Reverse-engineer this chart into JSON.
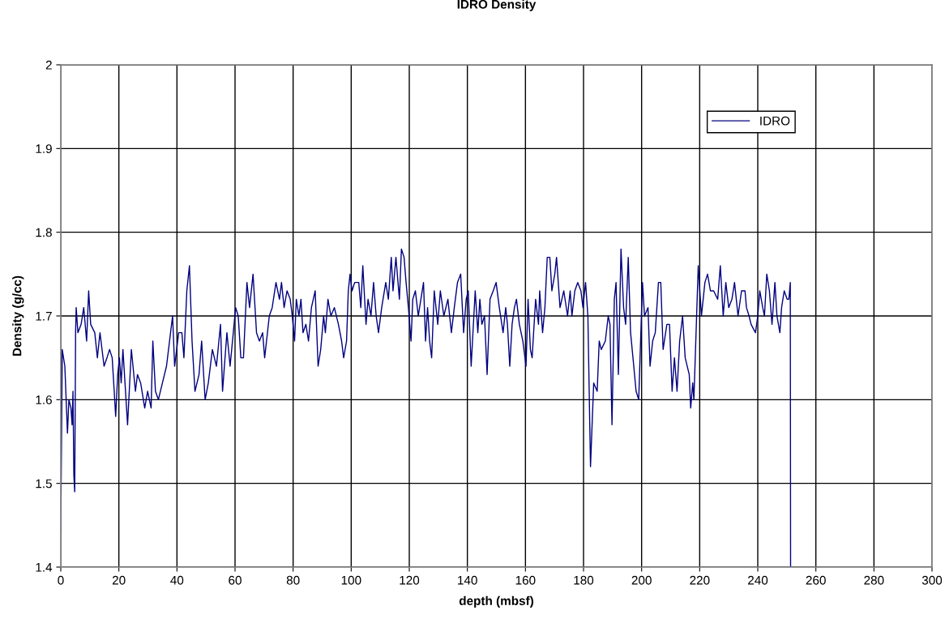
{
  "chart_data": {
    "type": "line",
    "title": "IDRO Density",
    "xlabel": "depth (mbsf)",
    "ylabel": "Density (g/cc)",
    "xlim": [
      0,
      300
    ],
    "xticks": [
      0,
      20,
      40,
      60,
      80,
      100,
      120,
      140,
      160,
      180,
      200,
      220,
      240,
      260,
      280,
      300
    ],
    "ylim": [
      1.4,
      2
    ],
    "yticks": [
      1.4,
      1.5,
      1.6,
      1.7,
      1.8,
      1.9,
      2
    ],
    "grid": true,
    "legend": "top right",
    "marker": "none",
    "line_style": "solid",
    "series": [
      {
        "name": "IDRO",
        "color": "#000080",
        "x": [
          0,
          0.5,
          1.4,
          2.3,
          2.8,
          3.5,
          3.9,
          4.2,
          4.5,
          4.8,
          5.1,
          5.3,
          5.9,
          7.0,
          7.9,
          8.9,
          9.6,
          10.3,
          11.7,
          12.6,
          13.5,
          14.9,
          15.9,
          16.8,
          17.7,
          18.4,
          18.9,
          19.6,
          20.2,
          20.8,
          21.4,
          23.0,
          24.3,
          25.7,
          26.4,
          27.5,
          28.9,
          29.9,
          31.1,
          31.7,
          32.6,
          33.6,
          35.0,
          36.4,
          37.8,
          38.5,
          39.2,
          40.6,
          41.7,
          42.4,
          43.4,
          44.3,
          45.2,
          46.2,
          47.6,
          48.5,
          49.7,
          50.8,
          52.2,
          53.6,
          55.0,
          55.7,
          57.2,
          58.3,
          59.4,
          60.2,
          61.1,
          62.0,
          62.9,
          64.1,
          65.0,
          66.2,
          67.4,
          68.4,
          69.5,
          70.2,
          71.8,
          72.8,
          74.1,
          75.3,
          76.0,
          76.9,
          77.9,
          79.0,
          79.7,
          80.5,
          81.1,
          82.0,
          82.7,
          83.4,
          84.4,
          85.3,
          86.3,
          87.6,
          88.6,
          89.5,
          90.5,
          91.1,
          92.0,
          93.0,
          94.2,
          95.6,
          96.7,
          97.4,
          98.4,
          99.0,
          99.6,
          100.3,
          101.2,
          102.6,
          103.3,
          104.0,
          105.1,
          105.8,
          106.8,
          107.7,
          108.6,
          109.4,
          110.5,
          111.9,
          112.8,
          113.8,
          114.4,
          115.4,
          116.6,
          117.3,
          118.2,
          118.9,
          119.7,
          120.6,
          121.2,
          122.1,
          123.1,
          124.0,
          124.9,
          125.6,
          126.3,
          127.0,
          127.7,
          128.6,
          129.8,
          130.7,
          131.9,
          133.3,
          134.5,
          135.5,
          136.6,
          137.7,
          138.7,
          139.6,
          140.3,
          141.3,
          142.7,
          143.6,
          144.3,
          145.0,
          145.9,
          146.8,
          147.8,
          148.9,
          149.9,
          151.0,
          152.3,
          153.2,
          153.8,
          154.6,
          155.4,
          156.2,
          156.9,
          157.9,
          159.1,
          160.2,
          160.9,
          161.7,
          162.3,
          163.5,
          164.5,
          164.9,
          165.9,
          166.7,
          167.5,
          168.4,
          169.1,
          170.1,
          170.7,
          171.9,
          173.2,
          174.5,
          175.4,
          176.0,
          177.0,
          178.0,
          179.1,
          179.8,
          180.7,
          181.5,
          182.4,
          183.5,
          184.7,
          185.4,
          186.1,
          187.5,
          188.5,
          189.1,
          189.8,
          190.6,
          191.2,
          192.0,
          192.9,
          193.8,
          194.5,
          195.4,
          196.2,
          197.3,
          198.1,
          199.0,
          200.3,
          201.0,
          202.2,
          202.9,
          203.8,
          204.7,
          205.8,
          206.6,
          207.4,
          208.7,
          209.6,
          210.5,
          211.3,
          212.2,
          213.1,
          214.1,
          215.0,
          216.4,
          216.9,
          217.6,
          218.0,
          219.5,
          220.6,
          221.8,
          222.7,
          223.7,
          224.8,
          226.2,
          227.1,
          228.1,
          229.0,
          230.0,
          231.1,
          232.0,
          233.2,
          234.4,
          235.6,
          236.1,
          237.0,
          237.7,
          239.2,
          240.0,
          240.7,
          241.7,
          242.3,
          243.1,
          244.0,
          244.9,
          245.9,
          246.6,
          247.6,
          248.2,
          249.1,
          250.1,
          250.7,
          251.2,
          251.3
        ],
        "values": [
          1.44,
          1.66,
          1.64,
          1.56,
          1.6,
          1.59,
          1.57,
          1.61,
          1.51,
          1.49,
          1.68,
          1.71,
          1.68,
          1.69,
          1.71,
          1.67,
          1.73,
          1.69,
          1.68,
          1.65,
          1.68,
          1.64,
          1.65,
          1.66,
          1.65,
          1.61,
          1.58,
          1.63,
          1.65,
          1.62,
          1.66,
          1.57,
          1.66,
          1.61,
          1.63,
          1.62,
          1.59,
          1.61,
          1.59,
          1.67,
          1.61,
          1.6,
          1.62,
          1.64,
          1.68,
          1.7,
          1.64,
          1.68,
          1.68,
          1.65,
          1.73,
          1.76,
          1.67,
          1.61,
          1.63,
          1.67,
          1.6,
          1.62,
          1.66,
          1.64,
          1.69,
          1.61,
          1.68,
          1.64,
          1.68,
          1.71,
          1.7,
          1.65,
          1.65,
          1.74,
          1.71,
          1.75,
          1.68,
          1.67,
          1.68,
          1.65,
          1.7,
          1.71,
          1.74,
          1.72,
          1.74,
          1.71,
          1.73,
          1.72,
          1.7,
          1.67,
          1.72,
          1.7,
          1.72,
          1.68,
          1.69,
          1.67,
          1.71,
          1.73,
          1.64,
          1.66,
          1.7,
          1.68,
          1.72,
          1.7,
          1.71,
          1.69,
          1.67,
          1.65,
          1.67,
          1.73,
          1.75,
          1.73,
          1.74,
          1.74,
          1.71,
          1.76,
          1.69,
          1.72,
          1.7,
          1.74,
          1.7,
          1.68,
          1.71,
          1.74,
          1.72,
          1.77,
          1.73,
          1.77,
          1.72,
          1.78,
          1.77,
          1.74,
          1.71,
          1.67,
          1.72,
          1.73,
          1.7,
          1.72,
          1.74,
          1.67,
          1.71,
          1.67,
          1.65,
          1.73,
          1.69,
          1.73,
          1.7,
          1.72,
          1.68,
          1.71,
          1.74,
          1.75,
          1.68,
          1.72,
          1.73,
          1.64,
          1.73,
          1.68,
          1.72,
          1.69,
          1.7,
          1.63,
          1.72,
          1.73,
          1.74,
          1.71,
          1.68,
          1.71,
          1.69,
          1.64,
          1.69,
          1.71,
          1.72,
          1.69,
          1.67,
          1.64,
          1.72,
          1.66,
          1.65,
          1.72,
          1.69,
          1.73,
          1.68,
          1.71,
          1.77,
          1.77,
          1.73,
          1.75,
          1.77,
          1.71,
          1.73,
          1.7,
          1.73,
          1.7,
          1.73,
          1.74,
          1.73,
          1.71,
          1.74,
          1.7,
          1.52,
          1.62,
          1.61,
          1.67,
          1.66,
          1.67,
          1.7,
          1.69,
          1.57,
          1.72,
          1.74,
          1.63,
          1.78,
          1.71,
          1.69,
          1.77,
          1.68,
          1.64,
          1.61,
          1.6,
          1.74,
          1.7,
          1.71,
          1.64,
          1.67,
          1.68,
          1.74,
          1.74,
          1.66,
          1.69,
          1.69,
          1.61,
          1.65,
          1.61,
          1.67,
          1.7,
          1.65,
          1.63,
          1.59,
          1.62,
          1.6,
          1.76,
          1.7,
          1.74,
          1.75,
          1.73,
          1.73,
          1.72,
          1.76,
          1.7,
          1.74,
          1.71,
          1.72,
          1.74,
          1.7,
          1.73,
          1.73,
          1.71,
          1.7,
          1.69,
          1.68,
          1.7,
          1.73,
          1.71,
          1.7,
          1.75,
          1.73,
          1.69,
          1.74,
          1.7,
          1.68,
          1.71,
          1.73,
          1.72,
          1.72,
          1.74,
          1.4
        ]
      }
    ]
  }
}
